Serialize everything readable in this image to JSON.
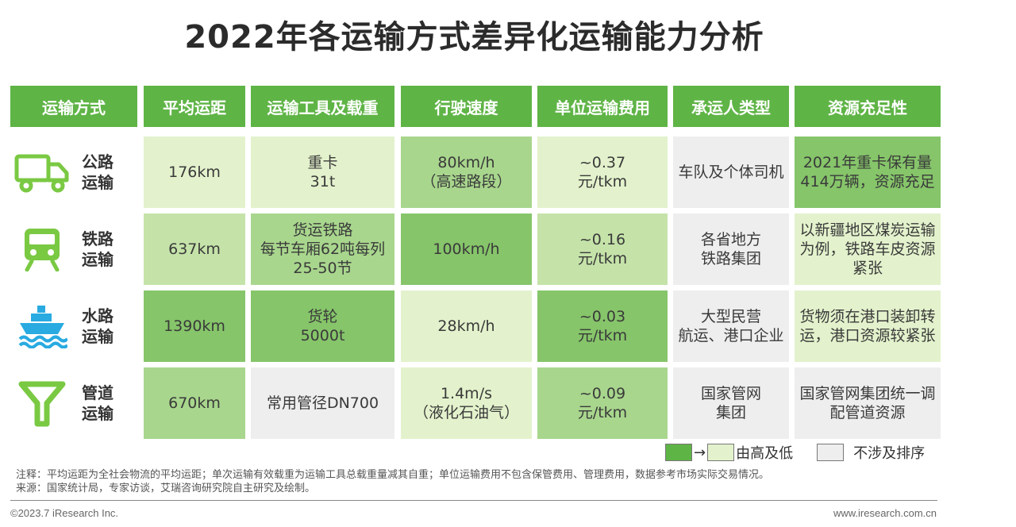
{
  "title": "2022年各运输方式差异化运输能力分析",
  "headers": [
    "运输方式",
    "平均运距",
    "运输工具及载重",
    "行驶速度",
    "单位运输费用",
    "承运人类型",
    "资源充足性"
  ],
  "rows": [
    {
      "mode": "公路运输",
      "icon": "truck-icon",
      "distance": "176km",
      "vehicle": [
        "重卡",
        "31t"
      ],
      "speed": [
        "80km/h",
        "（高速路段）"
      ],
      "cost": [
        "~0.37",
        "元/tkm"
      ],
      "carrier": [
        "车队及个体司机"
      ],
      "resource": [
        "2021年重卡保有量",
        "414万辆，资源充足"
      ]
    },
    {
      "mode": "铁路运输",
      "icon": "train-icon",
      "distance": "637km",
      "vehicle": [
        "货运铁路",
        "每节车厢62吨每列",
        "25-50节"
      ],
      "speed": [
        "100km/h"
      ],
      "cost": [
        "~0.16",
        "元/tkm"
      ],
      "carrier": [
        "各省地方",
        "铁路集团"
      ],
      "resource": [
        "以新疆地区煤炭运输",
        "为例，铁路车皮资源",
        "紧张"
      ]
    },
    {
      "mode": "水路运输",
      "icon": "ship-icon",
      "distance": "1390km",
      "vehicle": [
        "货轮",
        "5000t"
      ],
      "speed": [
        "28km/h"
      ],
      "cost": [
        "~0.03",
        "元/tkm"
      ],
      "carrier": [
        "大型民营",
        "航运、港口企业"
      ],
      "resource": [
        "货物须在港口装卸转",
        "运，港口资源较紧张"
      ]
    },
    {
      "mode": "管道运输",
      "icon": "pipeline-icon",
      "distance": "670km",
      "vehicle": [
        "常用管径DN700"
      ],
      "speed": [
        "1.4m/s",
        "（液化石油气）"
      ],
      "cost": [
        "~0.09",
        "元/tkm"
      ],
      "carrier": [
        "国家管网",
        "集团"
      ],
      "resource": [
        "国家管网集团统一调",
        "配管道资源"
      ]
    }
  ],
  "legend": {
    "arrow": "→",
    "high_to_low": "由高及低",
    "not_ranked": "不涉及排序"
  },
  "notes": {
    "note": "注释：平均运距为全社会物流的平均运距；单次运输有效载重为运输工具总载重量减其自重；单位运输费用不包含保管费用、管理费用，数据参考市场实际交易情况。",
    "source": "来源：国家统计局，专家访谈，艾瑞咨询研究院自主研究及绘制。"
  },
  "footer": {
    "copyright": "©2023.7 iResearch Inc.",
    "website": "www.iresearch.com.cn"
  },
  "colors": {
    "level1": "#5fb446",
    "level2": "#86c56a",
    "level3": "#a8d68d",
    "level4": "#c5e3a9",
    "level5": "#e3f2cc",
    "not_ranked": "#eeeeee",
    "icon": "#7ac943"
  }
}
